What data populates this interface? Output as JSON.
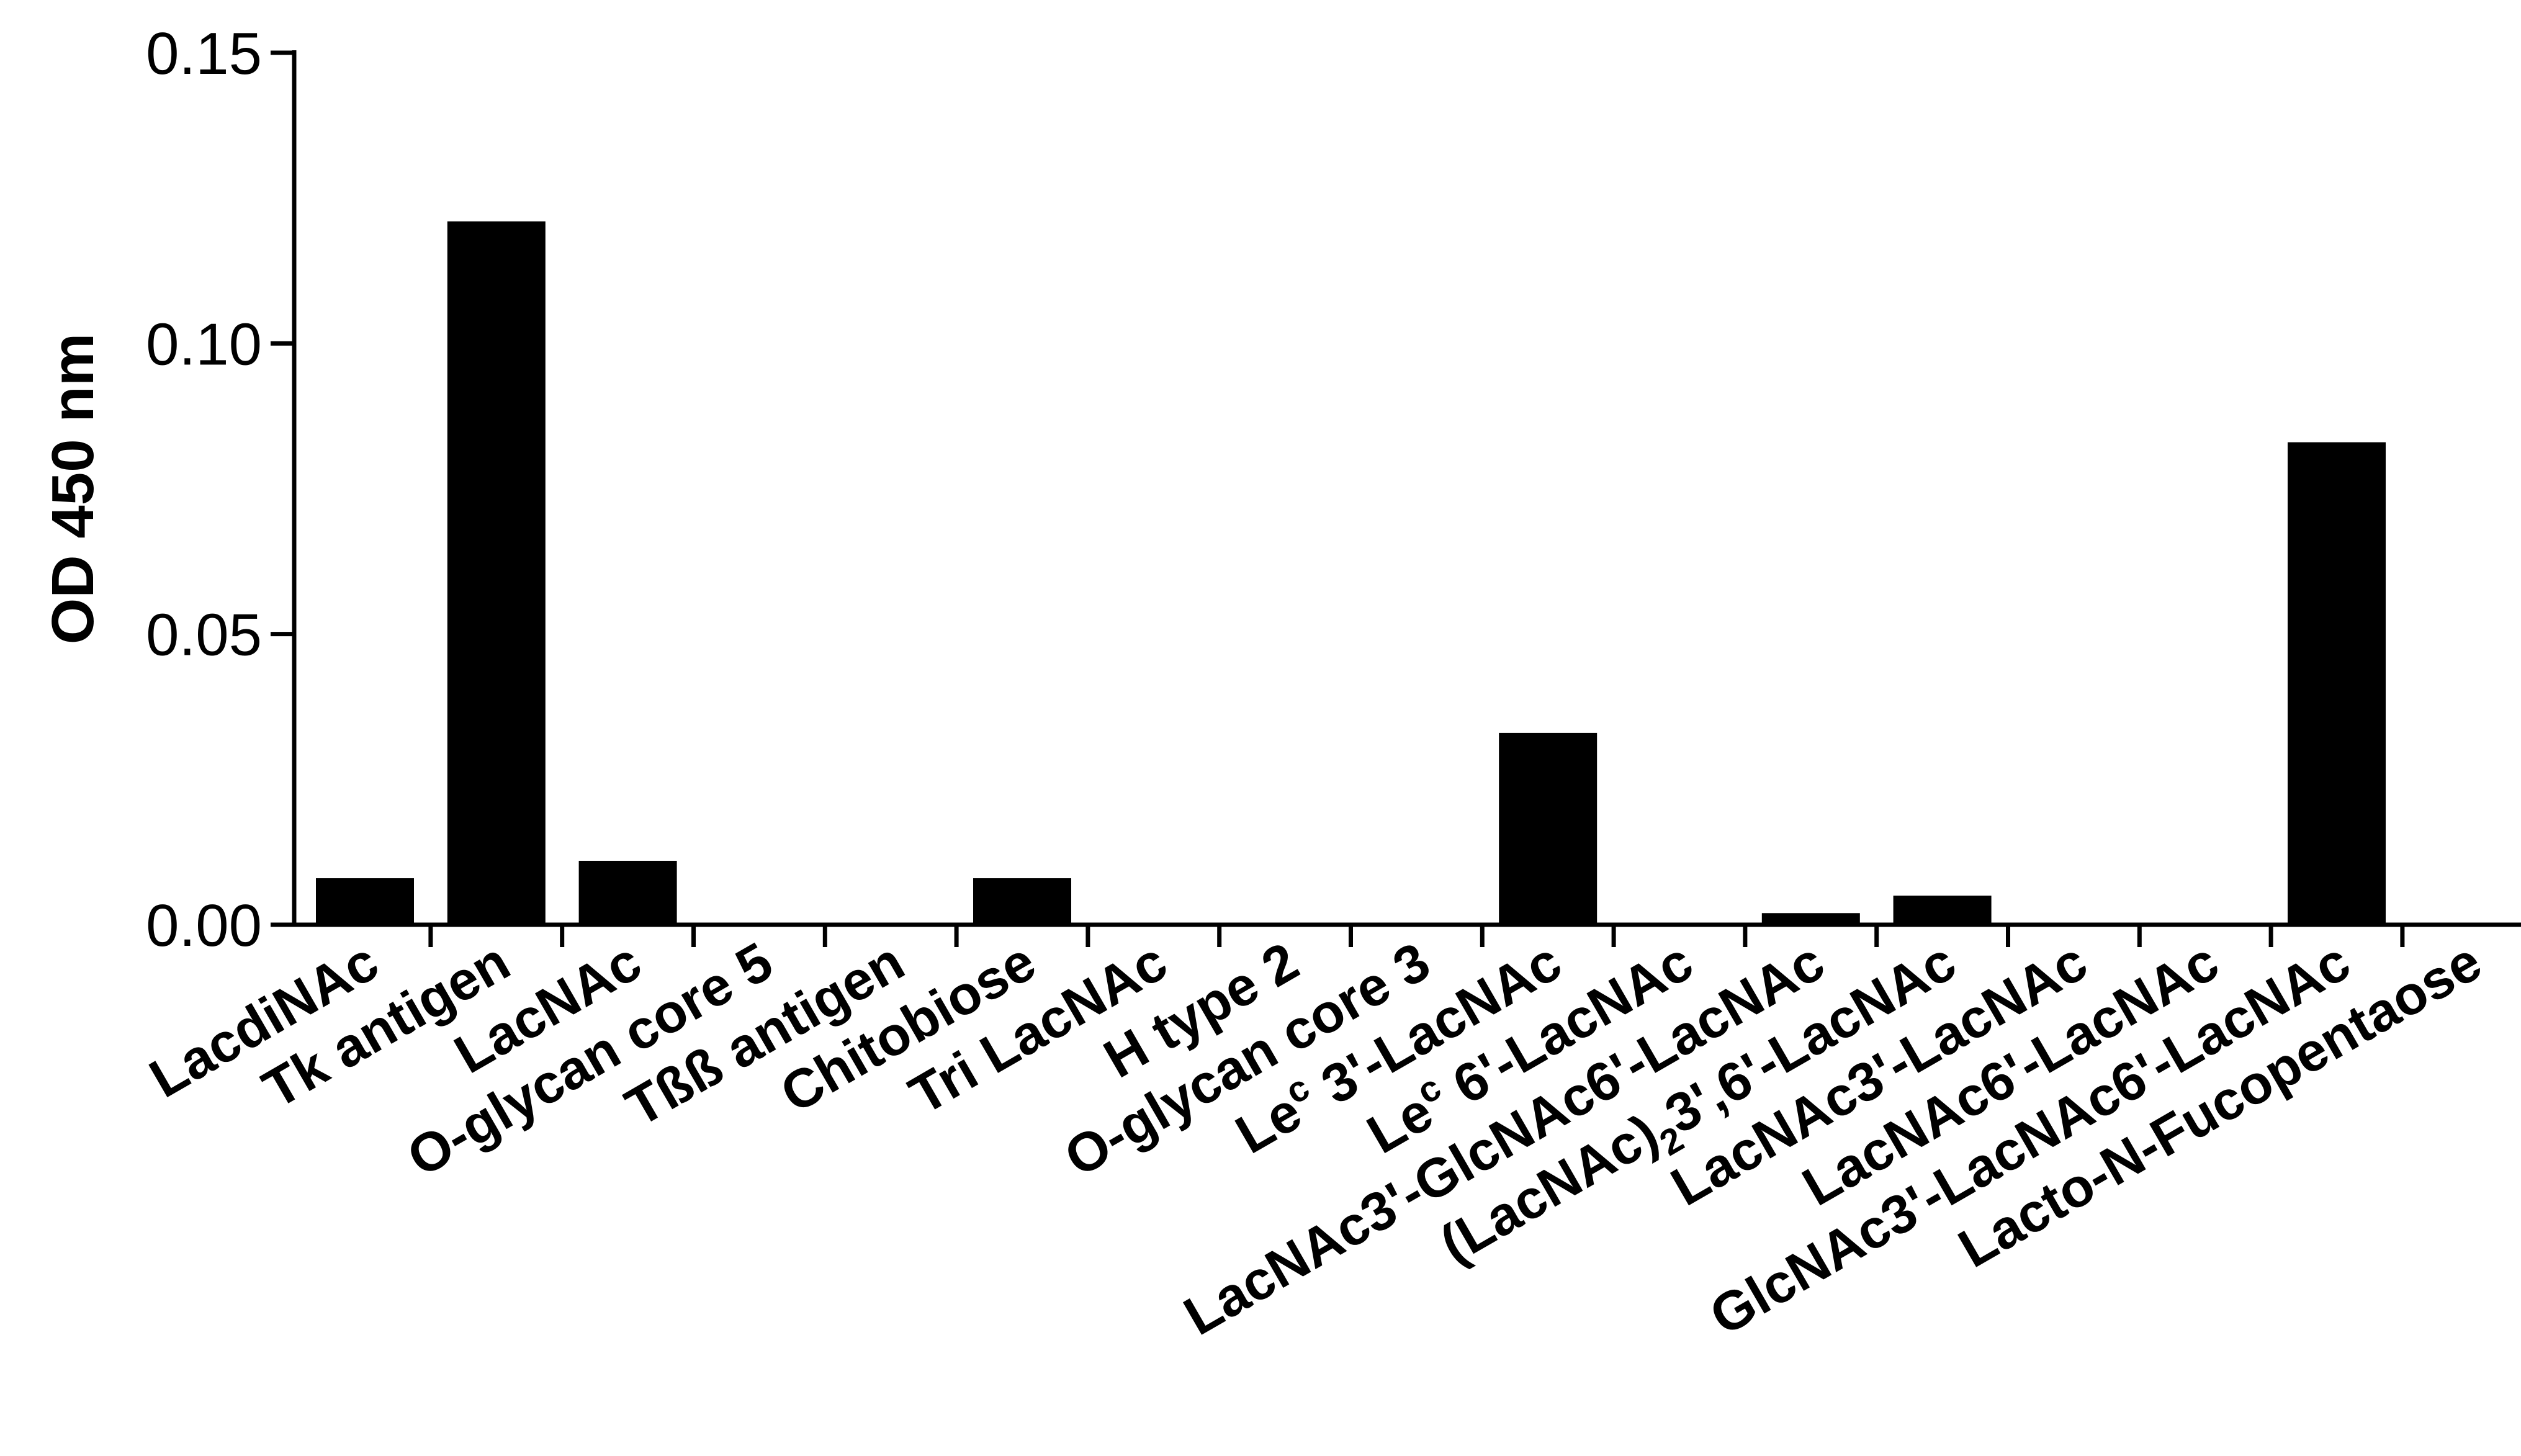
{
  "chart_data": {
    "type": "bar",
    "title": "",
    "xlabel": "",
    "ylabel": "OD 450 nm",
    "ylim": [
      0,
      0.15
    ],
    "yticks": [
      "0.00",
      "0.05",
      "0.10",
      "0.15"
    ],
    "grid": false,
    "legend": "none",
    "bar_color": "#000000",
    "categories": [
      {
        "text": "LacdiNAc"
      },
      {
        "text": "Tk antigen"
      },
      {
        "text": "LacNAc"
      },
      {
        "text": "O-glycan core 5"
      },
      {
        "text": "Tßß antigen"
      },
      {
        "text": "Chitobiose"
      },
      {
        "text": "Tri LacNAc"
      },
      {
        "text": "H type 2"
      },
      {
        "text": "O-glycan core 3"
      },
      {
        "text": "Le",
        "sup": "c",
        "rest": " 3'-LacNAc"
      },
      {
        "text": "Le",
        "sup": "c",
        "rest": " 6'-LacNAc"
      },
      {
        "text": "LacNAc3'-GlcNAc6'-LacNAc"
      },
      {
        "text": "(LacNAc)",
        "sub": "2",
        "rest": "3',6'-LacNAc"
      },
      {
        "text": "LacNAc3'-LacNAc"
      },
      {
        "text": "LacNAc6'-LacNAc"
      },
      {
        "text": "GlcNAc3'-LacNAc6'-LacNAc"
      },
      {
        "text": "Lacto-N-Fucopentaose"
      }
    ],
    "values": [
      0.008,
      0.121,
      0.011,
      0,
      0,
      0.008,
      0,
      0,
      0,
      0.033,
      0,
      0.002,
      0.005,
      0,
      0,
      0.083,
      0
    ]
  }
}
